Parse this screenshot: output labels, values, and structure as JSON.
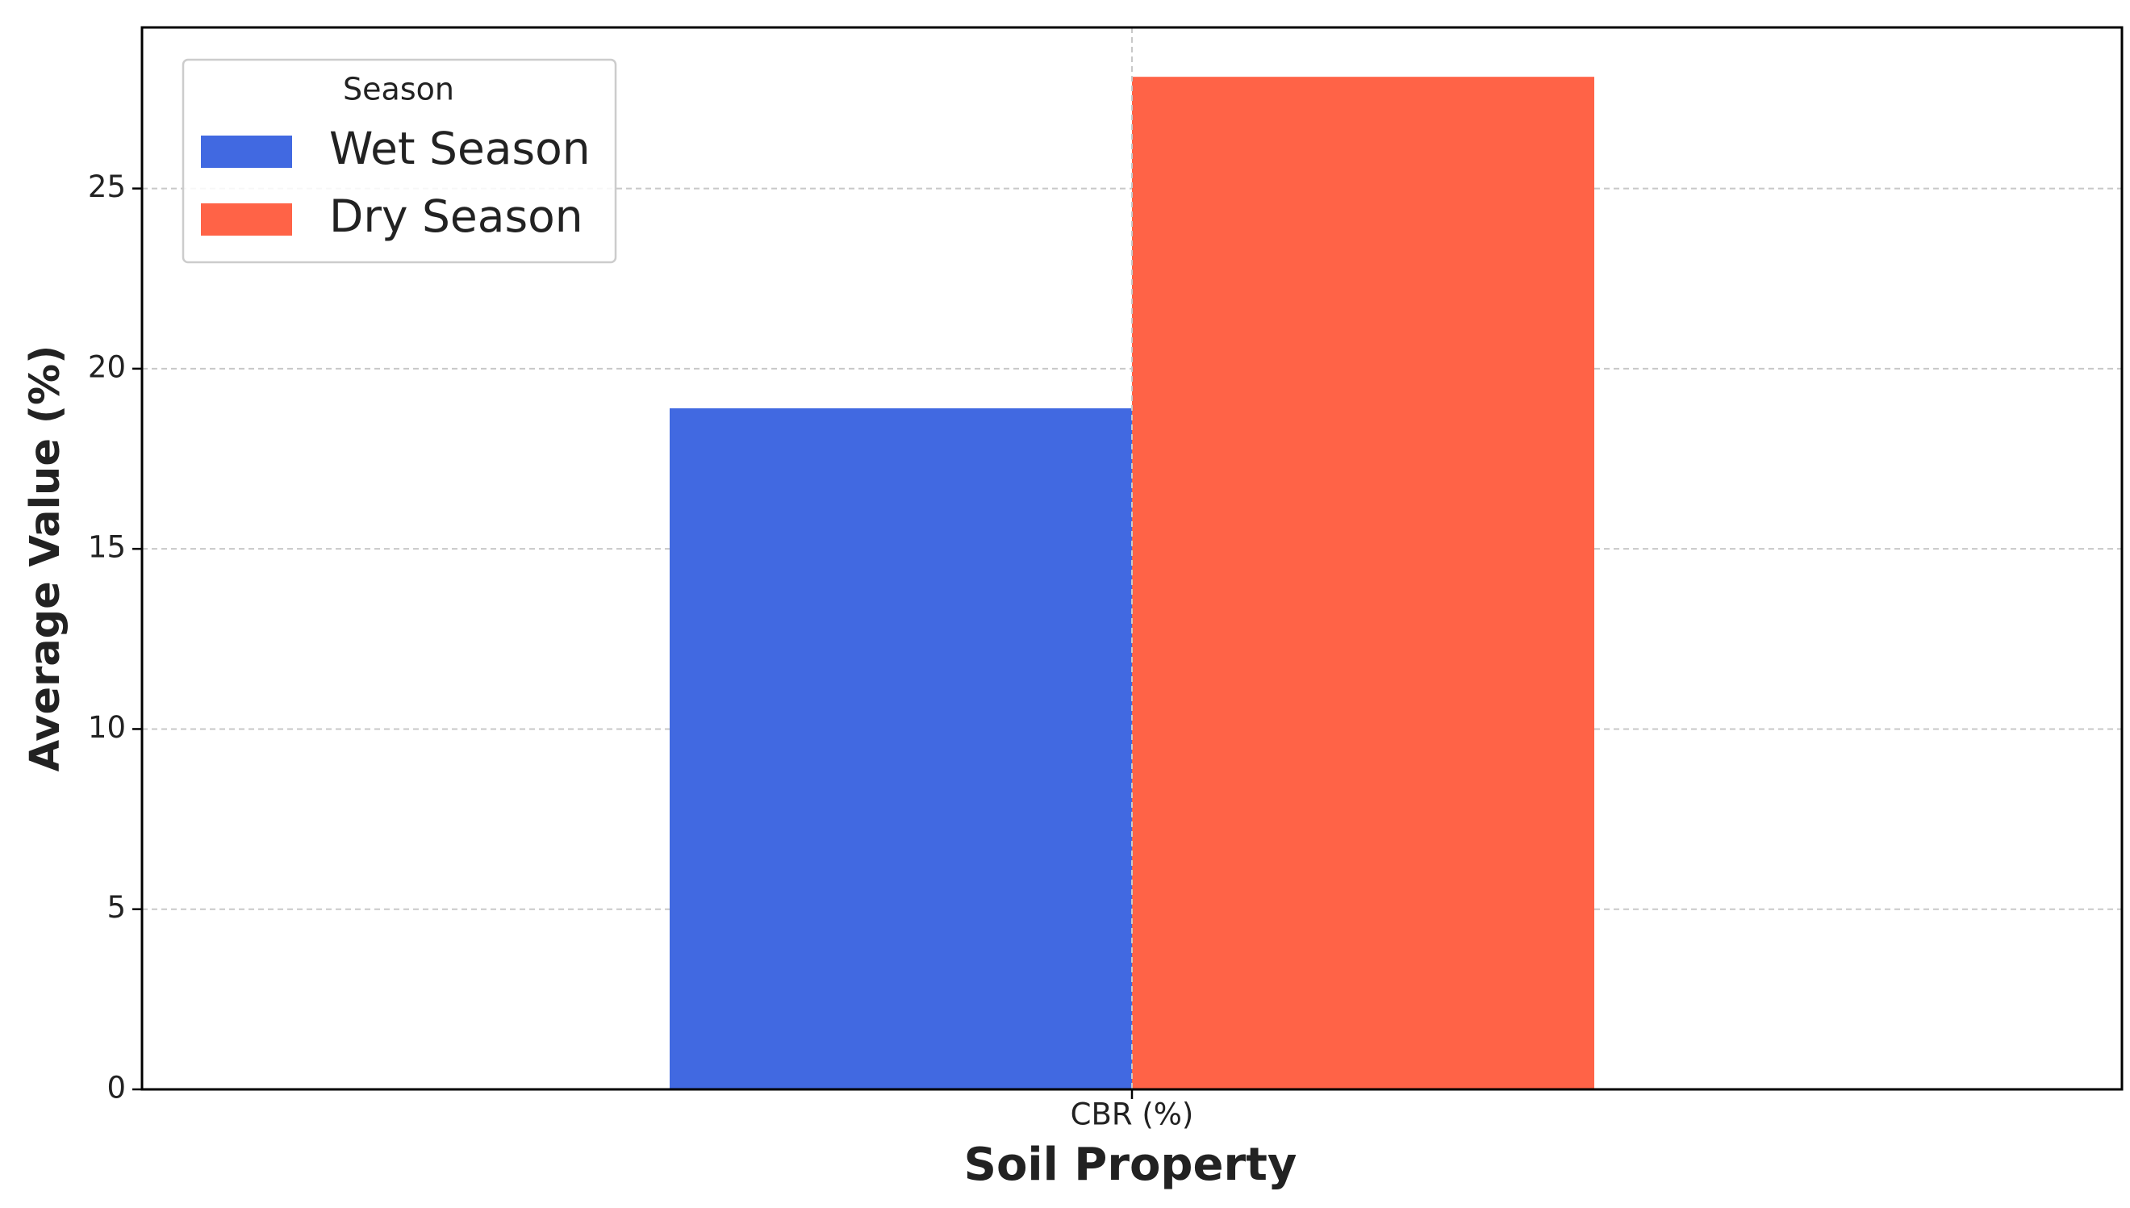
{
  "chart_data": {
    "type": "bar",
    "categories": [
      "CBR (%)"
    ],
    "series": [
      {
        "name": "Wet Season",
        "color": "#4169e1",
        "values": [
          18.9
        ]
      },
      {
        "name": "Dry Season",
        "color": "#ff6347",
        "values": [
          28.1
        ]
      }
    ],
    "xlabel": "Soil Property",
    "ylabel": "Average Value (%)",
    "legend_title": "Season",
    "legend_position": "upper left",
    "ylim": [
      0,
      29.47
    ],
    "yticks": [
      0,
      5,
      10,
      15,
      20,
      25
    ],
    "grid": true
  }
}
